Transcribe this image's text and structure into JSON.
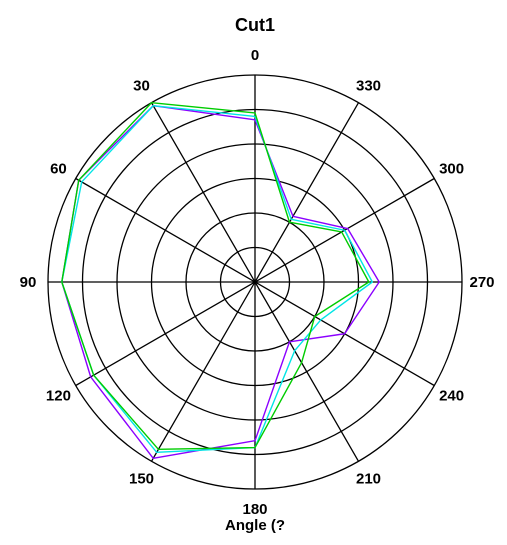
{
  "chart_data": {
    "type": "polar-line",
    "title": "Cut1",
    "xlabel": "Angle  (?",
    "angle_ticks": [
      "0",
      "30",
      "60",
      "90",
      "120",
      "150",
      "180",
      "210",
      "240",
      "270",
      "300",
      "330"
    ],
    "angle_direction": "counterclockwise",
    "zero_location": "top",
    "r_range": [
      0,
      6
    ],
    "ring_count": 6,
    "angles": [
      0,
      30,
      60,
      90,
      120,
      150,
      180,
      210,
      240,
      270,
      300,
      330
    ],
    "series": [
      {
        "color": "#8b00ff",
        "values": [
          4.7,
          5.9,
          5.9,
          5.6,
          5.5,
          5.9,
          4.6,
          2.0,
          3.0,
          3.6,
          3.1,
          2.2
        ]
      },
      {
        "color": "#00e5e5",
        "values": [
          4.8,
          5.9,
          5.8,
          5.6,
          5.4,
          5.7,
          4.8,
          2.3,
          2.2,
          3.4,
          3.0,
          2.1
        ]
      },
      {
        "color": "#00cc00",
        "values": [
          4.9,
          6.0,
          5.9,
          5.6,
          5.4,
          5.6,
          4.8,
          2.7,
          2.0,
          3.3,
          2.9,
          2.0
        ]
      }
    ]
  }
}
